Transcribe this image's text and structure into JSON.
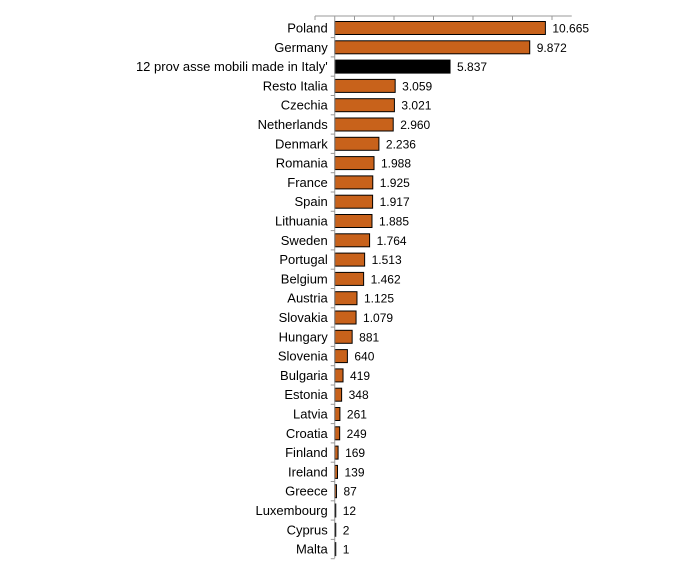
{
  "chart_data": {
    "type": "bar",
    "orientation": "horizontal",
    "categories": [
      "Poland",
      "Germany",
      "12 prov asse mobili made in Italy'",
      "Resto Italia",
      "Czechia",
      "Netherlands",
      "Denmark",
      "Romania",
      "France",
      "Spain",
      "Lithuania",
      "Sweden",
      "Portugal",
      "Belgium",
      "Austria",
      "Slovakia",
      "Hungary",
      "Slovenia",
      "Bulgaria",
      "Estonia",
      "Latvia",
      "Croatia",
      "Finland",
      "Ireland",
      "Greece",
      "Luxembourg",
      "Cyprus",
      "Malta"
    ],
    "values": [
      10665,
      9872,
      5837,
      3059,
      3021,
      2960,
      2236,
      1988,
      1925,
      1917,
      1885,
      1764,
      1513,
      1462,
      1125,
      1079,
      881,
      640,
      419,
      348,
      261,
      249,
      169,
      139,
      87,
      12,
      2,
      1
    ],
    "value_labels": [
      "10.665",
      "9.872",
      "5.837",
      "3.059",
      "3.021",
      "2.960",
      "2.236",
      "1.988",
      "1.925",
      "1.917",
      "1.885",
      "1.764",
      "1.513",
      "1.462",
      "1.125",
      "1.079",
      "881",
      "640",
      "419",
      "348",
      "261",
      "249",
      "169",
      "139",
      "87",
      "12",
      "2",
      "1"
    ],
    "highlight_index": 2,
    "colors": {
      "bar": "#c8621b",
      "highlight": "#000000",
      "stroke": "#000000"
    },
    "xlim": [
      -1000,
      12000
    ],
    "x_ticks": [
      -1000,
      1000,
      3000,
      5000,
      7000,
      9000,
      11000
    ],
    "title": "",
    "xlabel": "",
    "ylabel": "",
    "grid": false,
    "legend": "none"
  }
}
